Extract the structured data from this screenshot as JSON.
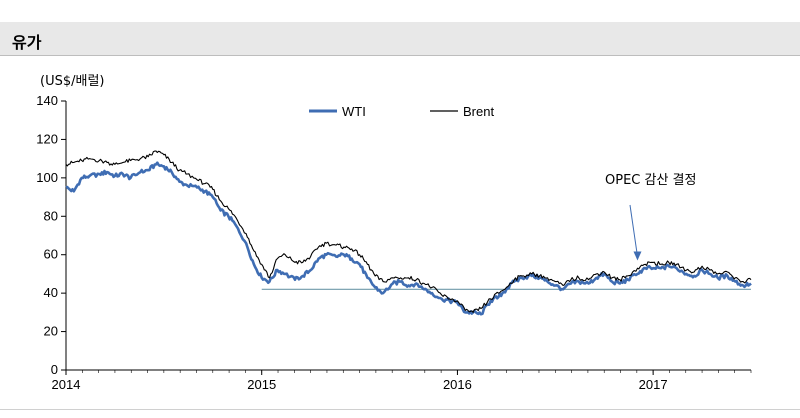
{
  "header": {
    "title": "유가"
  },
  "chart_data": {
    "type": "line",
    "ylabel": "(US$/배럴)",
    "ylim": [
      0,
      140
    ],
    "yticks": [
      0,
      20,
      40,
      60,
      80,
      100,
      120,
      140
    ],
    "xticks": [
      "2014",
      "2015",
      "2016",
      "2017"
    ],
    "xlim": [
      2014.0,
      2017.5
    ],
    "legend": "top-center",
    "grid": false,
    "reference_line": {
      "y": 42,
      "x_start": 2015.0,
      "x_end": 2017.5,
      "color": "#6f9aa9"
    },
    "annotation": {
      "text": "OPEC 감산 결정",
      "arrow_to": [
        2016.92,
        57
      ]
    },
    "series": [
      {
        "name": "WTI",
        "color": "#3f6db3",
        "points": [
          [
            2014.0,
            95
          ],
          [
            2014.04,
            93
          ],
          [
            2014.08,
            100
          ],
          [
            2014.12,
            101
          ],
          [
            2014.17,
            102
          ],
          [
            2014.21,
            103
          ],
          [
            2014.25,
            101
          ],
          [
            2014.29,
            102
          ],
          [
            2014.33,
            100
          ],
          [
            2014.38,
            103
          ],
          [
            2014.42,
            104
          ],
          [
            2014.46,
            107
          ],
          [
            2014.5,
            106
          ],
          [
            2014.54,
            103
          ],
          [
            2014.58,
            98
          ],
          [
            2014.62,
            96
          ],
          [
            2014.67,
            95
          ],
          [
            2014.71,
            93
          ],
          [
            2014.75,
            90
          ],
          [
            2014.79,
            83
          ],
          [
            2014.83,
            80
          ],
          [
            2014.87,
            75
          ],
          [
            2014.92,
            66
          ],
          [
            2014.96,
            55
          ],
          [
            2015.0,
            48
          ],
          [
            2015.04,
            46
          ],
          [
            2015.08,
            52
          ],
          [
            2015.12,
            50
          ],
          [
            2015.17,
            47
          ],
          [
            2015.21,
            49
          ],
          [
            2015.25,
            52
          ],
          [
            2015.29,
            58
          ],
          [
            2015.33,
            60
          ],
          [
            2015.38,
            59
          ],
          [
            2015.42,
            60
          ],
          [
            2015.46,
            58
          ],
          [
            2015.5,
            55
          ],
          [
            2015.54,
            48
          ],
          [
            2015.58,
            43
          ],
          [
            2015.62,
            40
          ],
          [
            2015.67,
            45
          ],
          [
            2015.71,
            46
          ],
          [
            2015.75,
            44
          ],
          [
            2015.79,
            45
          ],
          [
            2015.83,
            42
          ],
          [
            2015.87,
            40
          ],
          [
            2015.92,
            37
          ],
          [
            2015.96,
            36
          ],
          [
            2016.0,
            35
          ],
          [
            2016.04,
            30
          ],
          [
            2016.08,
            30
          ],
          [
            2016.12,
            29
          ],
          [
            2016.17,
            36
          ],
          [
            2016.21,
            38
          ],
          [
            2016.25,
            42
          ],
          [
            2016.29,
            46
          ],
          [
            2016.33,
            48
          ],
          [
            2016.38,
            49
          ],
          [
            2016.42,
            48
          ],
          [
            2016.46,
            46
          ],
          [
            2016.5,
            44
          ],
          [
            2016.54,
            42
          ],
          [
            2016.58,
            45
          ],
          [
            2016.62,
            46
          ],
          [
            2016.67,
            45
          ],
          [
            2016.71,
            48
          ],
          [
            2016.75,
            50
          ],
          [
            2016.79,
            46
          ],
          [
            2016.83,
            45
          ],
          [
            2016.87,
            47
          ],
          [
            2016.92,
            50
          ],
          [
            2016.96,
            53
          ],
          [
            2017.0,
            53
          ],
          [
            2017.04,
            53
          ],
          [
            2017.08,
            54
          ],
          [
            2017.12,
            53
          ],
          [
            2017.17,
            50
          ],
          [
            2017.21,
            49
          ],
          [
            2017.25,
            52
          ],
          [
            2017.29,
            50
          ],
          [
            2017.33,
            48
          ],
          [
            2017.38,
            49
          ],
          [
            2017.42,
            46
          ],
          [
            2017.46,
            44
          ],
          [
            2017.5,
            45
          ]
        ]
      },
      {
        "name": "Brent",
        "color": "#000000",
        "points": [
          [
            2014.0,
            107
          ],
          [
            2014.04,
            108
          ],
          [
            2014.08,
            109
          ],
          [
            2014.12,
            110
          ],
          [
            2014.17,
            109
          ],
          [
            2014.21,
            108
          ],
          [
            2014.25,
            107
          ],
          [
            2014.29,
            108
          ],
          [
            2014.33,
            109
          ],
          [
            2014.38,
            110
          ],
          [
            2014.42,
            111
          ],
          [
            2014.46,
            114
          ],
          [
            2014.5,
            112
          ],
          [
            2014.54,
            108
          ],
          [
            2014.58,
            104
          ],
          [
            2014.62,
            102
          ],
          [
            2014.67,
            99
          ],
          [
            2014.71,
            97
          ],
          [
            2014.75,
            94
          ],
          [
            2014.79,
            88
          ],
          [
            2014.83,
            84
          ],
          [
            2014.87,
            79
          ],
          [
            2014.92,
            71
          ],
          [
            2014.96,
            62
          ],
          [
            2015.0,
            55
          ],
          [
            2015.04,
            48
          ],
          [
            2015.08,
            58
          ],
          [
            2015.12,
            60
          ],
          [
            2015.17,
            56
          ],
          [
            2015.21,
            56
          ],
          [
            2015.25,
            59
          ],
          [
            2015.29,
            64
          ],
          [
            2015.33,
            66
          ],
          [
            2015.38,
            65
          ],
          [
            2015.42,
            64
          ],
          [
            2015.46,
            63
          ],
          [
            2015.5,
            60
          ],
          [
            2015.54,
            55
          ],
          [
            2015.58,
            49
          ],
          [
            2015.62,
            46
          ],
          [
            2015.67,
            48
          ],
          [
            2015.71,
            48
          ],
          [
            2015.75,
            48
          ],
          [
            2015.79,
            47
          ],
          [
            2015.83,
            45
          ],
          [
            2015.87,
            43
          ],
          [
            2015.92,
            39
          ],
          [
            2015.96,
            37
          ],
          [
            2016.0,
            36
          ],
          [
            2016.04,
            31
          ],
          [
            2016.08,
            30
          ],
          [
            2016.12,
            32
          ],
          [
            2016.17,
            37
          ],
          [
            2016.21,
            40
          ],
          [
            2016.25,
            43
          ],
          [
            2016.29,
            47
          ],
          [
            2016.33,
            49
          ],
          [
            2016.38,
            50
          ],
          [
            2016.42,
            49
          ],
          [
            2016.46,
            48
          ],
          [
            2016.5,
            46
          ],
          [
            2016.54,
            44
          ],
          [
            2016.58,
            47
          ],
          [
            2016.62,
            48
          ],
          [
            2016.67,
            47
          ],
          [
            2016.71,
            50
          ],
          [
            2016.75,
            51
          ],
          [
            2016.79,
            48
          ],
          [
            2016.83,
            47
          ],
          [
            2016.87,
            49
          ],
          [
            2016.92,
            53
          ],
          [
            2016.96,
            55
          ],
          [
            2017.0,
            56
          ],
          [
            2017.04,
            55
          ],
          [
            2017.08,
            56
          ],
          [
            2017.12,
            55
          ],
          [
            2017.17,
            52
          ],
          [
            2017.21,
            51
          ],
          [
            2017.25,
            54
          ],
          [
            2017.29,
            52
          ],
          [
            2017.33,
            50
          ],
          [
            2017.38,
            51
          ],
          [
            2017.42,
            48
          ],
          [
            2017.46,
            46
          ],
          [
            2017.5,
            47
          ]
        ]
      }
    ]
  }
}
